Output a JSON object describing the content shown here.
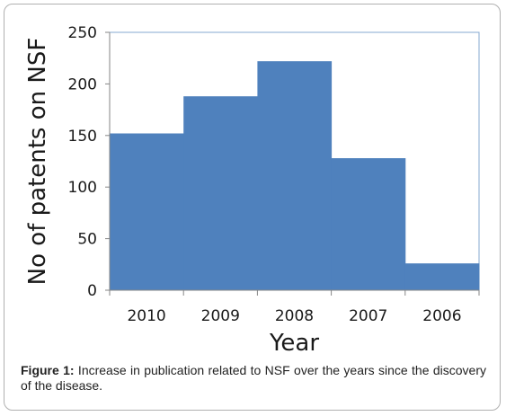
{
  "chart_data": {
    "type": "bar",
    "categories": [
      "2010",
      "2009",
      "2008",
      "2007",
      "2006"
    ],
    "values": [
      152,
      188,
      222,
      128,
      26
    ],
    "xlabel": "Year",
    "ylabel": "No of patents on NSF",
    "ylim": [
      0,
      250
    ],
    "yticks": [
      0,
      50,
      100,
      150,
      200,
      250
    ],
    "grid": false,
    "bar_color": "#4f81bd"
  },
  "caption": {
    "label": "Figure 1:",
    "text": " Increase in publication related to NSF over the years since the discovery of the disease."
  }
}
